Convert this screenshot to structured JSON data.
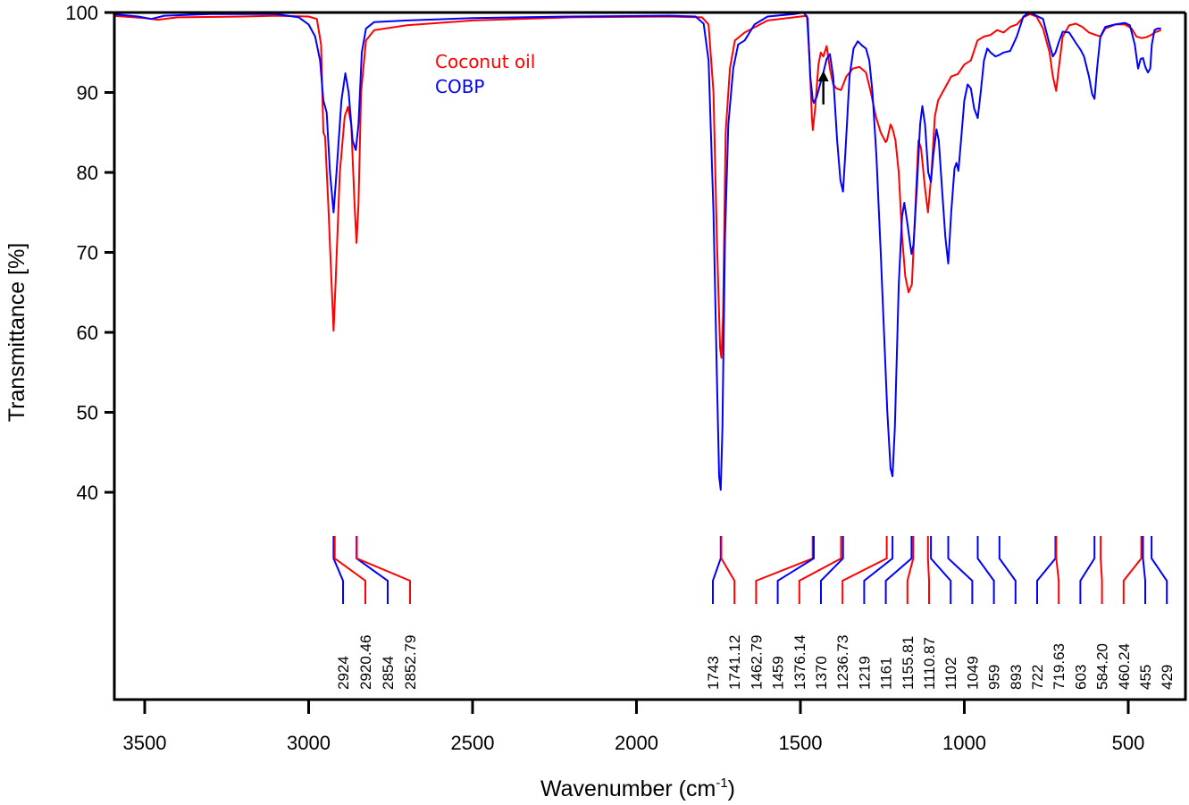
{
  "chart_data": {
    "type": "line",
    "title": "",
    "xlabel": "Wavenumber (cm",
    "xlabel_sup": "-1",
    "xlabel_close": ")",
    "ylabel": "Transmittance [%]",
    "xlim": [
      3600,
      400
    ],
    "ylim": [
      30,
      100
    ],
    "x_reversed": true,
    "grid": false,
    "x_ticks": [
      3500,
      3000,
      2500,
      2000,
      1500,
      1000,
      500
    ],
    "y_ticks": [
      40,
      50,
      60,
      70,
      80,
      90,
      100
    ],
    "legend": {
      "placement": "top-center",
      "entries": [
        {
          "name": "Coconut oil",
          "color": "#ff0000"
        },
        {
          "name": "COBP",
          "color": "#0000ff"
        }
      ]
    },
    "annotations": [
      {
        "type": "arrow",
        "direction": "up",
        "x": 1430,
        "y_from": 88.5,
        "y_to": 92.5,
        "color": "#000000"
      }
    ],
    "series": [
      {
        "name": "Coconut oil",
        "color": "#ff0000",
        "points": [
          [
            3600,
            99.6
          ],
          [
            3500,
            99.3
          ],
          [
            3460,
            99.1
          ],
          [
            3400,
            99.4
          ],
          [
            3200,
            99.5
          ],
          [
            3100,
            99.6
          ],
          [
            3000,
            99.5
          ],
          [
            2975,
            99.2
          ],
          [
            2962,
            96
          ],
          [
            2955,
            85
          ],
          [
            2950,
            84.5
          ],
          [
            2940,
            76
          ],
          [
            2930,
            66
          ],
          [
            2924,
            60.2
          ],
          [
            2918,
            66
          ],
          [
            2905,
            80
          ],
          [
            2890,
            87
          ],
          [
            2880,
            88.2
          ],
          [
            2870,
            86
          ],
          [
            2860,
            76
          ],
          [
            2854,
            71.2
          ],
          [
            2848,
            76
          ],
          [
            2840,
            90
          ],
          [
            2825,
            96.5
          ],
          [
            2800,
            97.8
          ],
          [
            2700,
            98.4
          ],
          [
            2500,
            99
          ],
          [
            2200,
            99.4
          ],
          [
            1900,
            99.5
          ],
          [
            1800,
            99.4
          ],
          [
            1780,
            98.5
          ],
          [
            1765,
            90
          ],
          [
            1755,
            72
          ],
          [
            1745,
            58
          ],
          [
            1741,
            56.8
          ],
          [
            1736,
            62
          ],
          [
            1728,
            85
          ],
          [
            1715,
            93
          ],
          [
            1700,
            96.5
          ],
          [
            1670,
            97.5
          ],
          [
            1600,
            99
          ],
          [
            1500,
            99.5
          ],
          [
            1480,
            99.6
          ],
          [
            1472,
            94
          ],
          [
            1465,
            87
          ],
          [
            1462,
            85.3
          ],
          [
            1455,
            88
          ],
          [
            1445,
            93.5
          ],
          [
            1438,
            95
          ],
          [
            1430,
            94.5
          ],
          [
            1420,
            95.8
          ],
          [
            1410,
            93
          ],
          [
            1400,
            91
          ],
          [
            1390,
            90.5
          ],
          [
            1376,
            90.3
          ],
          [
            1360,
            92
          ],
          [
            1340,
            93
          ],
          [
            1320,
            93.2
          ],
          [
            1300,
            92.5
          ],
          [
            1285,
            90
          ],
          [
            1270,
            87
          ],
          [
            1255,
            85
          ],
          [
            1240,
            83.8
          ],
          [
            1236,
            84
          ],
          [
            1225,
            86
          ],
          [
            1219,
            85.5
          ],
          [
            1210,
            84
          ],
          [
            1200,
            80
          ],
          [
            1190,
            72
          ],
          [
            1180,
            67
          ],
          [
            1170,
            65
          ],
          [
            1160,
            66
          ],
          [
            1150,
            75
          ],
          [
            1140,
            84
          ],
          [
            1132,
            83
          ],
          [
            1120,
            78
          ],
          [
            1111,
            75
          ],
          [
            1100,
            80
          ],
          [
            1090,
            87
          ],
          [
            1080,
            89
          ],
          [
            1060,
            90.5
          ],
          [
            1040,
            92
          ],
          [
            1020,
            92.3
          ],
          [
            1000,
            93.5
          ],
          [
            980,
            94
          ],
          [
            960,
            96.5
          ],
          [
            940,
            97
          ],
          [
            920,
            97.2
          ],
          [
            900,
            97.8
          ],
          [
            880,
            97.5
          ],
          [
            860,
            98.2
          ],
          [
            840,
            98.5
          ],
          [
            820,
            99.4
          ],
          [
            800,
            99.8
          ],
          [
            780,
            99.5
          ],
          [
            760,
            98
          ],
          [
            740,
            95
          ],
          [
            730,
            92
          ],
          [
            720,
            90.2
          ],
          [
            712,
            93
          ],
          [
            700,
            97
          ],
          [
            680,
            98.4
          ],
          [
            660,
            98.6
          ],
          [
            640,
            98.2
          ],
          [
            620,
            97.5
          ],
          [
            600,
            97.2
          ],
          [
            584,
            97
          ],
          [
            570,
            98
          ],
          [
            540,
            98.5
          ],
          [
            510,
            98.5
          ],
          [
            490,
            98
          ],
          [
            475,
            97
          ],
          [
            460,
            96.8
          ],
          [
            445,
            96.9
          ],
          [
            430,
            97.2
          ],
          [
            420,
            97.5
          ],
          [
            400,
            97.8
          ]
        ]
      },
      {
        "name": "COBP",
        "color": "#0000ff",
        "points": [
          [
            3600,
            99.8
          ],
          [
            3520,
            99.5
          ],
          [
            3480,
            99.2
          ],
          [
            3440,
            99.6
          ],
          [
            3300,
            99.8
          ],
          [
            3100,
            99.8
          ],
          [
            3030,
            99.4
          ],
          [
            3000,
            98.5
          ],
          [
            2980,
            97
          ],
          [
            2965,
            94
          ],
          [
            2955,
            89
          ],
          [
            2945,
            87.5
          ],
          [
            2935,
            80
          ],
          [
            2924,
            75
          ],
          [
            2915,
            80
          ],
          [
            2900,
            89
          ],
          [
            2888,
            92.4
          ],
          [
            2878,
            90
          ],
          [
            2866,
            84
          ],
          [
            2856,
            82.8
          ],
          [
            2848,
            86
          ],
          [
            2838,
            95
          ],
          [
            2825,
            98
          ],
          [
            2800,
            98.8
          ],
          [
            2700,
            99
          ],
          [
            2500,
            99.3
          ],
          [
            2200,
            99.5
          ],
          [
            1900,
            99.6
          ],
          [
            1820,
            99.5
          ],
          [
            1795,
            98.6
          ],
          [
            1780,
            94
          ],
          [
            1765,
            75
          ],
          [
            1755,
            55
          ],
          [
            1748,
            42
          ],
          [
            1743,
            40.3
          ],
          [
            1738,
            48
          ],
          [
            1730,
            72
          ],
          [
            1720,
            86
          ],
          [
            1705,
            93
          ],
          [
            1690,
            96
          ],
          [
            1670,
            96.5
          ],
          [
            1640,
            98.5
          ],
          [
            1600,
            99.5
          ],
          [
            1520,
            99.8
          ],
          [
            1490,
            100
          ],
          [
            1478,
            99.3
          ],
          [
            1470,
            92
          ],
          [
            1462,
            89
          ],
          [
            1459,
            88.7
          ],
          [
            1450,
            89.5
          ],
          [
            1440,
            91
          ],
          [
            1430,
            92.5
          ],
          [
            1420,
            94.2
          ],
          [
            1410,
            94.8
          ],
          [
            1400,
            92
          ],
          [
            1388,
            84
          ],
          [
            1378,
            79
          ],
          [
            1370,
            77.6
          ],
          [
            1362,
            83
          ],
          [
            1350,
            92
          ],
          [
            1338,
            95.5
          ],
          [
            1325,
            96.4
          ],
          [
            1310,
            95.8
          ],
          [
            1300,
            95.5
          ],
          [
            1290,
            94
          ],
          [
            1280,
            90
          ],
          [
            1268,
            82
          ],
          [
            1255,
            70
          ],
          [
            1245,
            60
          ],
          [
            1235,
            50
          ],
          [
            1225,
            43
          ],
          [
            1219,
            42
          ],
          [
            1212,
            48
          ],
          [
            1200,
            66
          ],
          [
            1190,
            74.5
          ],
          [
            1183,
            76.2
          ],
          [
            1175,
            74
          ],
          [
            1165,
            71
          ],
          [
            1161,
            69.8
          ],
          [
            1155,
            71
          ],
          [
            1145,
            78
          ],
          [
            1135,
            86
          ],
          [
            1128,
            88.3
          ],
          [
            1120,
            86
          ],
          [
            1110,
            80
          ],
          [
            1102,
            78.8
          ],
          [
            1095,
            82
          ],
          [
            1085,
            85.4
          ],
          [
            1078,
            84
          ],
          [
            1068,
            78
          ],
          [
            1058,
            72
          ],
          [
            1049,
            68.6
          ],
          [
            1040,
            75
          ],
          [
            1030,
            80.5
          ],
          [
            1024,
            81.2
          ],
          [
            1018,
            80.2
          ],
          [
            1010,
            84
          ],
          [
            1000,
            89
          ],
          [
            990,
            91
          ],
          [
            980,
            90.5
          ],
          [
            970,
            88
          ],
          [
            959,
            86.8
          ],
          [
            950,
            90
          ],
          [
            940,
            94
          ],
          [
            930,
            95.5
          ],
          [
            920,
            95
          ],
          [
            905,
            94.5
          ],
          [
            893,
            94.7
          ],
          [
            880,
            95
          ],
          [
            860,
            95.2
          ],
          [
            840,
            97
          ],
          [
            820,
            99.5
          ],
          [
            800,
            100
          ],
          [
            780,
            99.6
          ],
          [
            760,
            99.2
          ],
          [
            740,
            96
          ],
          [
            730,
            94.5
          ],
          [
            722,
            95
          ],
          [
            710,
            96.5
          ],
          [
            700,
            97.6
          ],
          [
            680,
            97.5
          ],
          [
            660,
            96.2
          ],
          [
            645,
            95.3
          ],
          [
            635,
            94.5
          ],
          [
            620,
            92
          ],
          [
            610,
            89.8
          ],
          [
            603,
            89.2
          ],
          [
            595,
            93
          ],
          [
            585,
            97
          ],
          [
            570,
            98.2
          ],
          [
            540,
            98.5
          ],
          [
            510,
            98.7
          ],
          [
            495,
            98.4
          ],
          [
            480,
            96
          ],
          [
            470,
            93
          ],
          [
            462,
            94.2
          ],
          [
            455,
            94.3
          ],
          [
            448,
            93.2
          ],
          [
            440,
            92.5
          ],
          [
            433,
            93
          ],
          [
            428,
            96
          ],
          [
            420,
            97.8
          ],
          [
            410,
            98
          ],
          [
            400,
            98
          ]
        ]
      }
    ],
    "peak_markers": [
      {
        "label": "2924",
        "x": 2924,
        "color": "#0000ff"
      },
      {
        "label": "2920.46",
        "x": 2920.46,
        "color": "#ff0000"
      },
      {
        "label": "2854",
        "x": 2854,
        "color": "#0000ff"
      },
      {
        "label": "2852.79",
        "x": 2852.79,
        "color": "#ff0000"
      },
      {
        "label": "1743",
        "x": 1743,
        "color": "#0000ff"
      },
      {
        "label": "1741.12",
        "x": 1741.12,
        "color": "#ff0000"
      },
      {
        "label": "1462.79",
        "x": 1462.79,
        "color": "#ff0000"
      },
      {
        "label": "1459",
        "x": 1459,
        "color": "#0000ff"
      },
      {
        "label": "1376.14",
        "x": 1376.14,
        "color": "#ff0000"
      },
      {
        "label": "1370",
        "x": 1370,
        "color": "#0000ff"
      },
      {
        "label": "1236.73",
        "x": 1236.73,
        "color": "#ff0000"
      },
      {
        "label": "1219",
        "x": 1219,
        "color": "#0000ff"
      },
      {
        "label": "1161",
        "x": 1161,
        "color": "#0000ff"
      },
      {
        "label": "1155.81",
        "x": 1155.81,
        "color": "#ff0000"
      },
      {
        "label": "1110.87",
        "x": 1110.87,
        "color": "#ff0000"
      },
      {
        "label": "1102",
        "x": 1102,
        "color": "#0000ff"
      },
      {
        "label": "1049",
        "x": 1049,
        "color": "#0000ff"
      },
      {
        "label": "959",
        "x": 959,
        "color": "#0000ff"
      },
      {
        "label": "893",
        "x": 893,
        "color": "#0000ff"
      },
      {
        "label": "722",
        "x": 722,
        "color": "#0000ff"
      },
      {
        "label": "719.63",
        "x": 719.63,
        "color": "#ff0000"
      },
      {
        "label": "603",
        "x": 603,
        "color": "#0000ff"
      },
      {
        "label": "584.20",
        "x": 584.2,
        "color": "#ff0000"
      },
      {
        "label": "460.24",
        "x": 460.24,
        "color": "#ff0000"
      },
      {
        "label": "455",
        "x": 455,
        "color": "#0000ff"
      },
      {
        "label": "429",
        "x": 429,
        "color": "#0000ff"
      }
    ]
  }
}
